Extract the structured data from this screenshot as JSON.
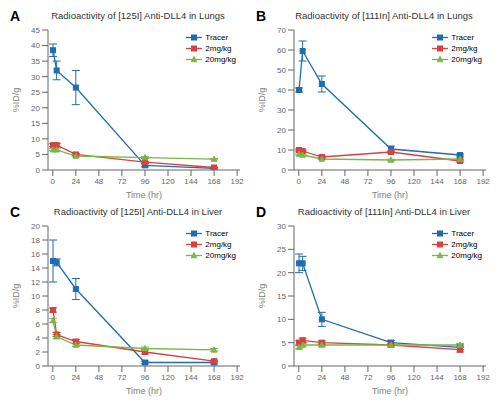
{
  "chart_data": [
    {
      "type": "line",
      "title": "Radioactivity of [125I] Anti-DLL4 in Lungs",
      "annotation": "A",
      "xlabel": "Time (hr)",
      "ylabel": "%ID/g",
      "x": [
        0.25,
        4,
        24,
        96,
        168
      ],
      "xlim": [
        -5,
        195
      ],
      "xticks": [
        0,
        24,
        48,
        72,
        96,
        120,
        144,
        168,
        192
      ],
      "ylim": [
        0,
        45
      ],
      "yticks": [
        0,
        5,
        10,
        15,
        20,
        25,
        30,
        35,
        40,
        45
      ],
      "grid": false,
      "legend": "upper right",
      "series": [
        {
          "name": "Tracer",
          "color": "#1F6CB0",
          "marker": "square",
          "values": [
            38.5,
            32.0,
            26.5,
            1.5,
            0.5
          ],
          "errors": [
            2.0,
            3.0,
            5.5,
            0.5,
            0.2
          ]
        },
        {
          "name": "2mg/kg",
          "color": "#D94040",
          "marker": "square",
          "values": [
            8.0,
            8.0,
            5.0,
            2.5,
            0.8
          ],
          "errors": [
            0.5,
            0.5,
            0.3,
            0.3,
            0.1
          ]
        },
        {
          "name": "20mg/kg",
          "color": "#7AB648",
          "marker": "triangle",
          "values": [
            6.5,
            6.5,
            4.5,
            4.0,
            3.5
          ],
          "errors": [
            0.3,
            0.3,
            0.3,
            0.3,
            0.2
          ]
        }
      ]
    },
    {
      "type": "line",
      "title": "Radioactivity of [111In] Anti-DLL4 in Lungs",
      "annotation": "B",
      "xlabel": "Time (hr)",
      "ylabel": "%ID/g",
      "x": [
        0.25,
        4,
        24,
        96,
        168
      ],
      "xlim": [
        -5,
        195
      ],
      "xticks": [
        0,
        24,
        48,
        72,
        96,
        120,
        144,
        168,
        192
      ],
      "ylim": [
        0,
        70
      ],
      "yticks": [
        0,
        10,
        20,
        30,
        40,
        50,
        60,
        70
      ],
      "grid": false,
      "legend": "upper right",
      "series": [
        {
          "name": "Tracer",
          "color": "#1F6CB0",
          "marker": "square",
          "values": [
            40.0,
            59.5,
            43.0,
            10.5,
            7.5
          ],
          "errors": [
            1.0,
            5.0,
            4.0,
            1.5,
            0.5
          ]
        },
        {
          "name": "2mg/kg",
          "color": "#D94040",
          "marker": "square",
          "values": [
            10.0,
            9.5,
            6.5,
            9.0,
            4.5
          ],
          "errors": [
            0.5,
            0.5,
            0.5,
            0.5,
            0.5
          ]
        },
        {
          "name": "20mg/kg",
          "color": "#7AB648",
          "marker": "triangle",
          "values": [
            8.0,
            7.5,
            5.5,
            5.0,
            5.5
          ],
          "errors": [
            0.5,
            0.4,
            0.3,
            0.4,
            0.5
          ]
        }
      ]
    },
    {
      "type": "line",
      "title": "Radioactivity of [125I] Anti-DLL4 in Liver",
      "annotation": "C",
      "xlabel": "Time (hr)",
      "ylabel": "%ID/g",
      "x": [
        0.25,
        4,
        24,
        96,
        168
      ],
      "xlim": [
        -5,
        195
      ],
      "xticks": [
        0,
        24,
        48,
        72,
        96,
        120,
        144,
        168,
        192
      ],
      "ylim": [
        0,
        20
      ],
      "yticks": [
        0,
        2,
        4,
        6,
        8,
        10,
        12,
        14,
        16,
        18,
        20
      ],
      "grid": false,
      "legend": "upper right",
      "series": [
        {
          "name": "Tracer",
          "color": "#1F6CB0",
          "marker": "square",
          "values": [
            15.0,
            14.8,
            11.0,
            0.5,
            0.5
          ],
          "errors": [
            3.0,
            0.5,
            1.5,
            0.2,
            0.2
          ]
        },
        {
          "name": "2mg/kg",
          "color": "#D94040",
          "marker": "square",
          "values": [
            8.0,
            4.5,
            3.5,
            2.0,
            0.7
          ],
          "errors": [
            0.3,
            0.3,
            0.3,
            0.3,
            0.15
          ]
        },
        {
          "name": "20mg/kg",
          "color": "#7AB648",
          "marker": "triangle",
          "values": [
            6.5,
            4.2,
            3.0,
            2.5,
            2.3
          ],
          "errors": [
            0.3,
            0.3,
            0.2,
            0.2,
            0.2
          ]
        }
      ]
    },
    {
      "type": "line",
      "title": "Radioactivity of [111In] Anti-DLL4 in Liver",
      "annotation": "D",
      "xlabel": "Time (hr)",
      "ylabel": "%ID/g",
      "x": [
        0.25,
        4,
        24,
        96,
        168
      ],
      "xlim": [
        -5,
        195
      ],
      "xticks": [
        0,
        24,
        48,
        72,
        96,
        120,
        144,
        168,
        192
      ],
      "ylim": [
        0,
        30
      ],
      "yticks": [
        0,
        5,
        10,
        15,
        20,
        25,
        30
      ],
      "grid": false,
      "legend": "upper right",
      "series": [
        {
          "name": "Tracer",
          "color": "#1F6CB0",
          "marker": "square",
          "values": [
            22.0,
            22.0,
            10.0,
            5.0,
            4.0
          ],
          "errors": [
            2.0,
            1.5,
            1.5,
            0.5,
            0.5
          ]
        },
        {
          "name": "2mg/kg",
          "color": "#D94040",
          "marker": "square",
          "values": [
            5.0,
            5.5,
            5.0,
            4.5,
            3.5
          ],
          "errors": [
            0.5,
            0.5,
            0.4,
            0.4,
            0.5
          ]
        },
        {
          "name": "20mg/kg",
          "color": "#7AB648",
          "marker": "triangle",
          "values": [
            4.0,
            4.5,
            4.5,
            4.5,
            4.5
          ],
          "errors": [
            0.3,
            0.3,
            0.3,
            0.3,
            0.3
          ]
        }
      ]
    }
  ]
}
